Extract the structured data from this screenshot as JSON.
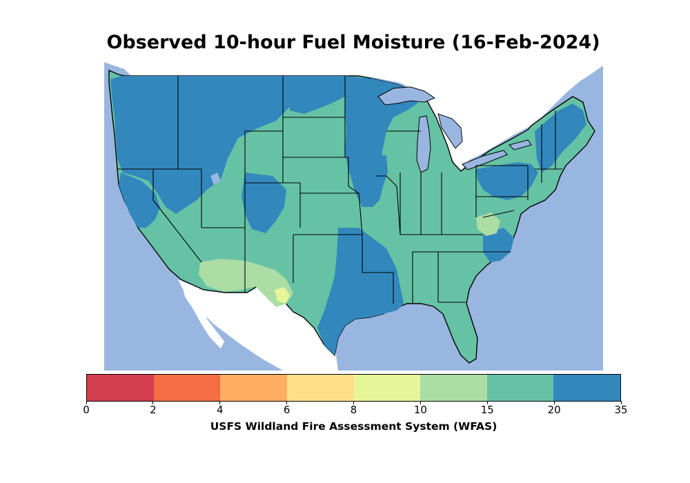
{
  "title": "Observed 10-hour Fuel Moisture (16-Feb-2024)",
  "colorbar": {
    "label": "USFS Wildland Fire Assessment System (WFAS)",
    "ticks": [
      "0",
      "2",
      "4",
      "6",
      "8",
      "10",
      "15",
      "20",
      "35"
    ],
    "bins": [
      {
        "range": "0-2",
        "color": "#d53e4f"
      },
      {
        "range": "2-4",
        "color": "#f46d43"
      },
      {
        "range": "4-6",
        "color": "#fdae61"
      },
      {
        "range": "6-8",
        "color": "#fee08b"
      },
      {
        "range": "8-10",
        "color": "#e6f598"
      },
      {
        "range": "10-15",
        "color": "#abdda4"
      },
      {
        "range": "15-20",
        "color": "#66c2a5"
      },
      {
        "range": "20-35",
        "color": "#3288bd"
      }
    ]
  },
  "map": {
    "region": "Contiguous United States",
    "water_color": "#99b6e0",
    "land_outside_color": "#ffffff",
    "border_color": "#000000"
  }
}
